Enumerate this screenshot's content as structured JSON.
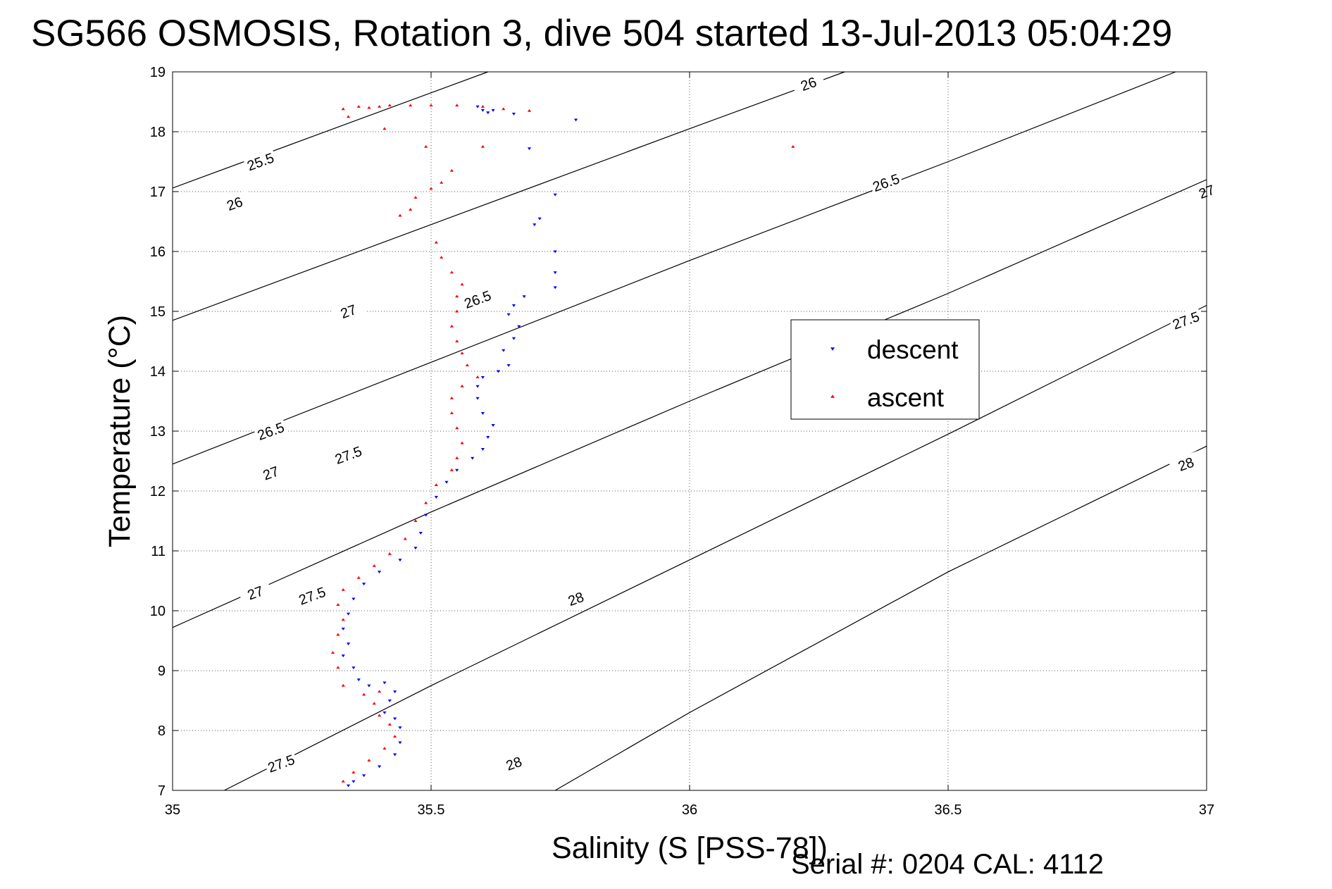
{
  "chart_data": {
    "type": "scatter",
    "title": "SG566 OSMOSIS, Rotation 3, dive 504 started 13-Jul-2013 05:04:29",
    "xlabel": "Salinity (S [PSS-78])",
    "ylabel": "Temperature (°C)",
    "xlim": [
      35,
      37
    ],
    "ylim": [
      7,
      19
    ],
    "x_ticks": [
      "35",
      "35.5",
      "36",
      "36.5",
      "37"
    ],
    "y_ticks": [
      "7",
      "8",
      "9",
      "10",
      "11",
      "12",
      "13",
      "14",
      "15",
      "16",
      "17",
      "18",
      "19"
    ],
    "grid": true,
    "legend_position": "center-right",
    "density_contours": [
      {
        "level": "25.5",
        "points": [
          [
            35.0,
            17.06
          ],
          [
            35.61,
            19.0
          ]
        ]
      },
      {
        "level": "26",
        "points": [
          [
            35.0,
            14.85
          ],
          [
            35.5,
            16.45
          ],
          [
            36.0,
            18.05
          ],
          [
            36.3,
            19.0
          ]
        ]
      },
      {
        "level": "26.5",
        "points": [
          [
            35.0,
            12.45
          ],
          [
            35.5,
            14.15
          ],
          [
            36.0,
            15.85
          ],
          [
            36.5,
            17.5
          ],
          [
            36.94,
            19.0
          ]
        ]
      },
      {
        "level": "27",
        "points": [
          [
            35.0,
            9.72
          ],
          [
            35.5,
            11.65
          ],
          [
            36.0,
            13.5
          ],
          [
            36.5,
            15.3
          ],
          [
            37.0,
            17.2
          ]
        ]
      },
      {
        "level": "27.5",
        "points": [
          [
            35.1,
            7.0
          ],
          [
            35.5,
            8.75
          ],
          [
            36.0,
            10.85
          ],
          [
            36.5,
            12.95
          ],
          [
            37.0,
            15.1
          ]
        ]
      },
      {
        "level": "28",
        "points": [
          [
            35.74,
            7.0
          ],
          [
            36.0,
            8.3
          ],
          [
            36.5,
            10.65
          ],
          [
            37.0,
            12.75
          ]
        ]
      }
    ],
    "contour_labels": [
      {
        "text": "25.5",
        "x": 35.17,
        "y": 17.5
      },
      {
        "text": "26",
        "x": 36.23,
        "y": 18.8
      },
      {
        "text": "26",
        "x": 35.12,
        "y": 16.8
      },
      {
        "text": "26.5",
        "x": 36.38,
        "y": 17.15
      },
      {
        "text": "26.5",
        "x": 35.59,
        "y": 15.2
      },
      {
        "text": "26.5",
        "x": 35.19,
        "y": 13.0
      },
      {
        "text": "27",
        "x": 37.0,
        "y": 17.0
      },
      {
        "text": "27",
        "x": 35.34,
        "y": 15.0
      },
      {
        "text": "27",
        "x": 35.19,
        "y": 12.3
      },
      {
        "text": "27",
        "x": 35.16,
        "y": 10.3
      },
      {
        "text": "27.5",
        "x": 36.96,
        "y": 14.85
      },
      {
        "text": "27.5",
        "x": 35.34,
        "y": 12.6
      },
      {
        "text": "27.5",
        "x": 35.27,
        "y": 10.25
      },
      {
        "text": "27.5",
        "x": 35.21,
        "y": 7.45
      },
      {
        "text": "28",
        "x": 36.96,
        "y": 12.45
      },
      {
        "text": "28",
        "x": 35.78,
        "y": 10.2
      },
      {
        "text": "28",
        "x": 35.66,
        "y": 7.45
      }
    ],
    "series": [
      {
        "name": "descent",
        "color": "#0000ff",
        "marker": "triangle-down",
        "points": [
          [
            35.59,
            18.42
          ],
          [
            35.6,
            18.36
          ],
          [
            35.61,
            18.32
          ],
          [
            35.62,
            18.36
          ],
          [
            35.66,
            18.3
          ],
          [
            35.78,
            18.2
          ],
          [
            35.69,
            17.72
          ],
          [
            35.74,
            16.95
          ],
          [
            35.71,
            16.55
          ],
          [
            35.7,
            16.45
          ],
          [
            35.74,
            16.0
          ],
          [
            35.74,
            15.65
          ],
          [
            35.74,
            15.4
          ],
          [
            35.68,
            15.25
          ],
          [
            35.66,
            15.1
          ],
          [
            35.65,
            14.95
          ],
          [
            35.67,
            14.75
          ],
          [
            35.66,
            14.55
          ],
          [
            35.64,
            14.35
          ],
          [
            35.65,
            14.1
          ],
          [
            35.63,
            14.0
          ],
          [
            35.6,
            13.9
          ],
          [
            35.59,
            13.75
          ],
          [
            35.59,
            13.55
          ],
          [
            35.6,
            13.3
          ],
          [
            35.62,
            13.1
          ],
          [
            35.61,
            12.9
          ],
          [
            35.6,
            12.7
          ],
          [
            35.58,
            12.55
          ],
          [
            35.55,
            12.35
          ],
          [
            35.53,
            12.15
          ],
          [
            35.51,
            11.9
          ],
          [
            35.49,
            11.6
          ],
          [
            35.48,
            11.3
          ],
          [
            35.47,
            11.05
          ],
          [
            35.44,
            10.85
          ],
          [
            35.4,
            10.65
          ],
          [
            35.37,
            10.45
          ],
          [
            35.35,
            10.2
          ],
          [
            35.34,
            9.95
          ],
          [
            35.33,
            9.7
          ],
          [
            35.34,
            9.45
          ],
          [
            35.33,
            9.25
          ],
          [
            35.35,
            9.05
          ],
          [
            35.36,
            8.85
          ],
          [
            35.38,
            8.75
          ],
          [
            35.41,
            8.8
          ],
          [
            35.43,
            8.65
          ],
          [
            35.42,
            8.5
          ],
          [
            35.41,
            8.3
          ],
          [
            35.43,
            8.2
          ],
          [
            35.44,
            8.05
          ],
          [
            35.44,
            7.8
          ],
          [
            35.43,
            7.6
          ],
          [
            35.4,
            7.4
          ],
          [
            35.37,
            7.25
          ],
          [
            35.35,
            7.15
          ],
          [
            35.34,
            7.08
          ]
        ]
      },
      {
        "name": "ascent",
        "color": "#ff0000",
        "marker": "triangle-up",
        "points": [
          [
            35.33,
            18.38
          ],
          [
            35.36,
            18.42
          ],
          [
            35.38,
            18.4
          ],
          [
            35.4,
            18.42
          ],
          [
            35.42,
            18.44
          ],
          [
            35.46,
            18.44
          ],
          [
            35.5,
            18.44
          ],
          [
            35.55,
            18.44
          ],
          [
            35.6,
            18.42
          ],
          [
            35.64,
            18.38
          ],
          [
            35.69,
            18.35
          ],
          [
            35.34,
            18.25
          ],
          [
            35.41,
            18.05
          ],
          [
            35.49,
            17.75
          ],
          [
            35.6,
            17.75
          ],
          [
            35.54,
            17.35
          ],
          [
            35.52,
            17.15
          ],
          [
            35.5,
            17.05
          ],
          [
            35.47,
            16.9
          ],
          [
            35.46,
            16.7
          ],
          [
            35.44,
            16.6
          ],
          [
            35.51,
            16.15
          ],
          [
            35.52,
            15.9
          ],
          [
            35.54,
            15.65
          ],
          [
            35.56,
            15.45
          ],
          [
            35.55,
            15.25
          ],
          [
            35.55,
            15.0
          ],
          [
            35.54,
            14.75
          ],
          [
            35.55,
            14.5
          ],
          [
            35.56,
            14.3
          ],
          [
            35.57,
            14.1
          ],
          [
            35.59,
            13.9
          ],
          [
            35.56,
            13.75
          ],
          [
            35.54,
            13.55
          ],
          [
            35.54,
            13.3
          ],
          [
            35.55,
            13.05
          ],
          [
            35.56,
            12.8
          ],
          [
            35.55,
            12.55
          ],
          [
            35.54,
            12.35
          ],
          [
            35.51,
            12.1
          ],
          [
            35.49,
            11.8
          ],
          [
            35.47,
            11.5
          ],
          [
            35.45,
            11.2
          ],
          [
            35.42,
            10.95
          ],
          [
            35.39,
            10.75
          ],
          [
            35.36,
            10.55
          ],
          [
            35.33,
            10.35
          ],
          [
            35.32,
            10.1
          ],
          [
            35.33,
            9.85
          ],
          [
            35.32,
            9.6
          ],
          [
            35.31,
            9.3
          ],
          [
            35.32,
            9.05
          ],
          [
            35.33,
            8.75
          ],
          [
            35.37,
            8.6
          ],
          [
            35.4,
            8.65
          ],
          [
            35.39,
            8.45
          ],
          [
            35.4,
            8.25
          ],
          [
            35.42,
            8.1
          ],
          [
            35.43,
            7.9
          ],
          [
            35.41,
            7.7
          ],
          [
            35.38,
            7.5
          ],
          [
            35.35,
            7.3
          ],
          [
            35.33,
            7.15
          ],
          [
            36.2,
            17.75
          ]
        ]
      }
    ],
    "legend": [
      {
        "label": "descent",
        "color": "#0000ff",
        "marker": "triangle-down"
      },
      {
        "label": "ascent",
        "color": "#ff0000",
        "marker": "triangle-up"
      }
    ],
    "footer": "Serial #: 0204  CAL: 4112"
  }
}
